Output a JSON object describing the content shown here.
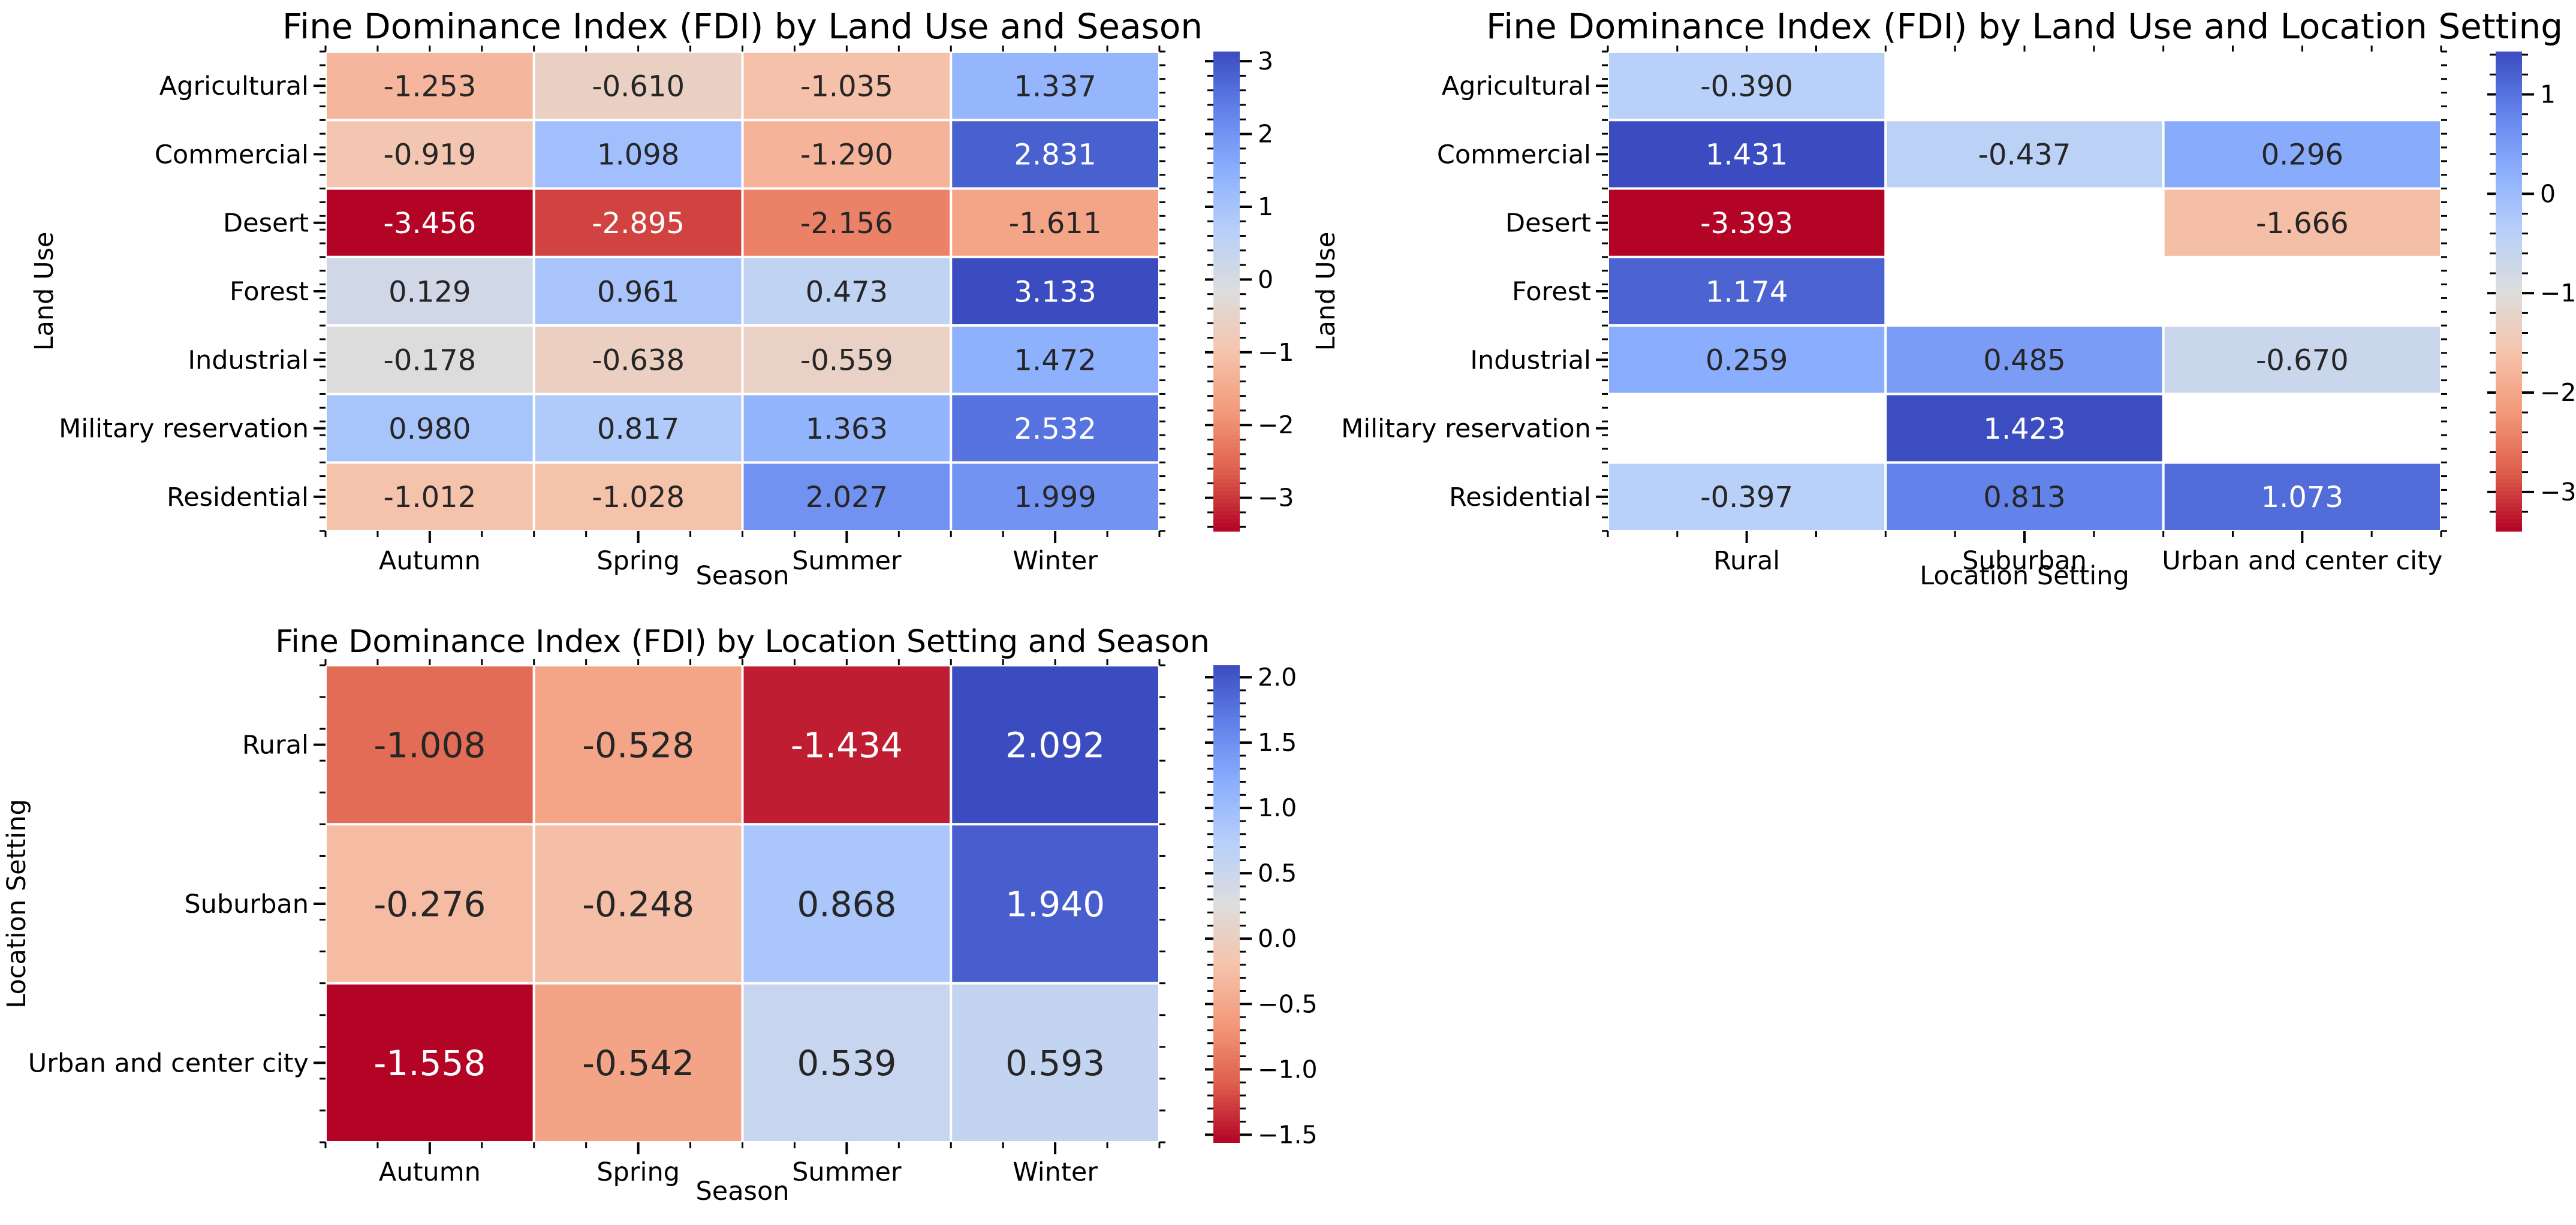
{
  "chart_data": [
    {
      "type": "heatmap",
      "title": "Fine Dominance Index (FDI) by Land Use and Season",
      "xlabel": "Season",
      "ylabel": "Land Use",
      "x_categories": [
        "Autumn",
        "Spring",
        "Summer",
        "Winter"
      ],
      "y_categories": [
        "Agricultural",
        "Commercial",
        "Desert",
        "Forest",
        "Industrial",
        "Military reservation",
        "Residential"
      ],
      "values": [
        [
          -1.253,
          -0.61,
          -1.035,
          1.337
        ],
        [
          -0.919,
          1.098,
          -1.29,
          2.831
        ],
        [
          -3.456,
          -2.895,
          -2.156,
          -1.611
        ],
        [
          0.129,
          0.961,
          0.473,
          3.133
        ],
        [
          -0.178,
          -0.638,
          -0.559,
          1.472
        ],
        [
          0.98,
          0.817,
          1.363,
          2.532
        ],
        [
          -1.012,
          -1.028,
          2.027,
          1.999
        ]
      ],
      "colorbar": {
        "range": [
          -3.456,
          3.133
        ],
        "ticks": [
          -3,
          -2,
          -1,
          0,
          1,
          2,
          3
        ],
        "tick_labels": [
          "−3",
          "−2",
          "−1",
          "0",
          "1",
          "2",
          "3"
        ]
      },
      "colormap": "coolwarm_r",
      "grid": false
    },
    {
      "type": "heatmap",
      "title": "Fine Dominance Index (FDI) by Land Use and Location Setting",
      "xlabel": "Location Setting",
      "ylabel": "Land Use",
      "x_categories": [
        "Rural",
        "Suburban",
        "Urban and center city"
      ],
      "y_categories": [
        "Agricultural",
        "Commercial",
        "Desert",
        "Forest",
        "Industrial",
        "Military reservation",
        "Residential"
      ],
      "values": [
        [
          -0.39,
          null,
          null
        ],
        [
          1.431,
          -0.437,
          0.296
        ],
        [
          -3.393,
          null,
          -1.666
        ],
        [
          1.174,
          null,
          null
        ],
        [
          0.259,
          0.485,
          -0.67
        ],
        [
          null,
          1.423,
          null
        ],
        [
          -0.397,
          0.813,
          1.073
        ]
      ],
      "colorbar": {
        "range": [
          -3.393,
          1.431
        ],
        "ticks": [
          -3,
          -2,
          -1,
          0,
          1
        ],
        "tick_labels": [
          "−3",
          "−2",
          "−1",
          "0",
          "1"
        ]
      },
      "colormap": "coolwarm_r",
      "grid": false
    },
    {
      "type": "heatmap",
      "title": "Fine Dominance Index (FDI) by Location Setting and Season",
      "xlabel": "Season",
      "ylabel": "Location Setting",
      "x_categories": [
        "Autumn",
        "Spring",
        "Summer",
        "Winter"
      ],
      "y_categories": [
        "Rural",
        "Suburban",
        "Urban and center city"
      ],
      "values": [
        [
          -1.008,
          -0.528,
          -1.434,
          2.092
        ],
        [
          -0.276,
          -0.248,
          0.868,
          1.94
        ],
        [
          -1.558,
          -0.542,
          0.539,
          0.593
        ]
      ],
      "colorbar": {
        "range": [
          -1.558,
          2.092
        ],
        "ticks": [
          -1.5,
          -1.0,
          -0.5,
          0.0,
          0.5,
          1.0,
          1.5,
          2.0
        ],
        "tick_labels": [
          "−1.5",
          "−1.0",
          "−0.5",
          "0.0",
          "0.5",
          "1.0",
          "1.5",
          "2.0"
        ]
      },
      "colormap": "coolwarm_r",
      "grid": false
    }
  ]
}
